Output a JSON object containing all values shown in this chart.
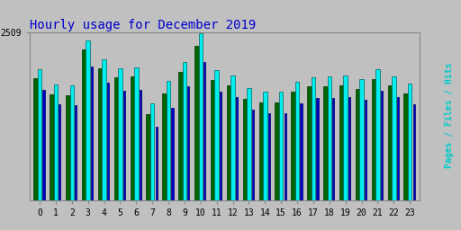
{
  "title": "Hourly usage for December 2019",
  "title_color": "#0000cc",
  "title_fontsize": 10,
  "background_color": "#c0c0c0",
  "plot_bg_color": "#c0c0c0",
  "ylim_max": 2509,
  "ytick_val": 2509,
  "categories": [
    0,
    1,
    2,
    3,
    4,
    5,
    6,
    7,
    8,
    9,
    10,
    11,
    12,
    13,
    14,
    15,
    16,
    17,
    18,
    19,
    20,
    21,
    22,
    23
  ],
  "pages": [
    1820,
    1580,
    1570,
    2250,
    1970,
    1840,
    1850,
    1290,
    1600,
    1920,
    2300,
    1800,
    1720,
    1510,
    1460,
    1460,
    1615,
    1695,
    1695,
    1715,
    1665,
    1815,
    1715,
    1595
  ],
  "files": [
    1950,
    1730,
    1720,
    2380,
    2100,
    1970,
    1980,
    1450,
    1780,
    2060,
    2490,
    1940,
    1860,
    1670,
    1620,
    1620,
    1770,
    1840,
    1845,
    1865,
    1810,
    1960,
    1855,
    1745
  ],
  "hits": [
    1650,
    1430,
    1420,
    2000,
    1760,
    1640,
    1650,
    1100,
    1380,
    1700,
    2060,
    1620,
    1540,
    1350,
    1300,
    1300,
    1450,
    1530,
    1530,
    1545,
    1495,
    1640,
    1540,
    1430
  ],
  "pages_color": "#006400",
  "files_color": "#00eeee",
  "hits_color": "#0000cc",
  "pages_edge": "#003300",
  "files_edge": "#006666",
  "hits_edge": "#000066",
  "bar_width": 0.25,
  "right_label": "Pages / Files / Hits",
  "right_label_color": "#00cccc",
  "font_family": "monospace"
}
